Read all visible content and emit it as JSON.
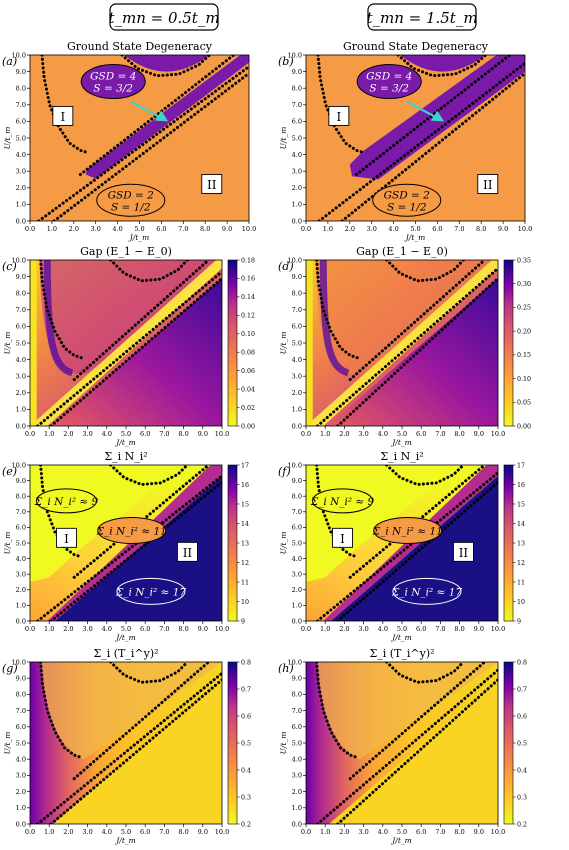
{
  "header": {
    "columns": [
      {
        "label": "t_mn = 0.5t_m"
      },
      {
        "label": "t_mn = 1.5t_m"
      }
    ]
  },
  "chart_data": [
    {
      "type": "heatmap",
      "panel": "(a)",
      "title": "Ground State Degeneracy",
      "xlabel": "J/t_m",
      "ylabel": "U/t_m",
      "xlim": [
        0,
        10
      ],
      "ylim": [
        0,
        10
      ],
      "xticks": [
        "0.0",
        "1.0",
        "2.0",
        "3.0",
        "4.0",
        "5.0",
        "6.0",
        "7.0",
        "8.0",
        "9.0",
        "10.0"
      ],
      "yticks": [
        "0.0",
        "1.0",
        "2.0",
        "3.0",
        "4.0",
        "5.0",
        "6.0",
        "7.0",
        "8.0",
        "9.0",
        "10.0"
      ],
      "annotations": [
        "GSD = 4",
        "S = 3/2",
        "GSD = 2",
        "S = 1/2",
        "I",
        "II"
      ]
    },
    {
      "type": "heatmap",
      "panel": "(b)",
      "title": "Ground State Degeneracy",
      "xlabel": "J/t_m",
      "ylabel": "U/t_m",
      "xlim": [
        0,
        10
      ],
      "ylim": [
        0,
        10
      ],
      "xticks": [
        "0.0",
        "1.0",
        "2.0",
        "3.0",
        "4.0",
        "5.0",
        "6.0",
        "7.0",
        "8.0",
        "9.0",
        "10.0"
      ],
      "yticks": [
        "0.0",
        "1.0",
        "2.0",
        "3.0",
        "4.0",
        "5.0",
        "6.0",
        "7.0",
        "8.0",
        "9.0",
        "10.0"
      ],
      "annotations": [
        "GSD = 4",
        "S = 3/2",
        "GSD = 2",
        "S = 1/2",
        "I",
        "II"
      ]
    },
    {
      "type": "heatmap",
      "panel": "(c)",
      "title": "Gap (E_1 − E_0)",
      "xlabel": "J/t_m",
      "ylabel": "U/t_m",
      "xlim": [
        0,
        10
      ],
      "ylim": [
        0,
        10
      ],
      "xticks": [
        "0.0",
        "1.0",
        "2.0",
        "3.0",
        "4.0",
        "5.0",
        "6.0",
        "7.0",
        "8.0",
        "9.0",
        "10.0"
      ],
      "yticks": [
        "0.0",
        "1.0",
        "2.0",
        "3.0",
        "4.0",
        "5.0",
        "6.0",
        "7.0",
        "8.0",
        "9.0",
        "10.0"
      ],
      "colorbar": {
        "ticks": [
          "0.00",
          "0.02",
          "0.04",
          "0.06",
          "0.08",
          "0.10",
          "0.12",
          "0.14",
          "0.16",
          "0.18"
        ]
      }
    },
    {
      "type": "heatmap",
      "panel": "(d)",
      "title": "Gap (E_1 − E_0)",
      "xlabel": "J/t_m",
      "ylabel": "U/t_m",
      "xlim": [
        0,
        10
      ],
      "ylim": [
        0,
        10
      ],
      "xticks": [
        "0.0",
        "1.0",
        "2.0",
        "3.0",
        "4.0",
        "5.0",
        "6.0",
        "7.0",
        "8.0",
        "9.0",
        "10.0"
      ],
      "yticks": [
        "0.0",
        "1.0",
        "2.0",
        "3.0",
        "4.0",
        "5.0",
        "6.0",
        "7.0",
        "8.0",
        "9.0",
        "10.0"
      ],
      "colorbar": {
        "ticks": [
          "0.00",
          "0.05",
          "0.10",
          "0.15",
          "0.20",
          "0.25",
          "0.30",
          "0.35"
        ]
      }
    },
    {
      "type": "heatmap",
      "panel": "(e)",
      "title": "Σ_i N_i²",
      "xlabel": "J/t_m",
      "ylabel": "U/t_m",
      "xlim": [
        0,
        10
      ],
      "ylim": [
        0,
        10
      ],
      "xticks": [
        "0.0",
        "1.0",
        "2.0",
        "3.0",
        "4.0",
        "5.0",
        "6.0",
        "7.0",
        "8.0",
        "9.0",
        "10.0"
      ],
      "yticks": [
        "0.0",
        "1.0",
        "2.0",
        "3.0",
        "4.0",
        "5.0",
        "6.0",
        "7.0",
        "8.0",
        "9.0",
        "10.0"
      ],
      "colorbar": {
        "ticks": [
          "9",
          "10",
          "11",
          "12",
          "13",
          "14",
          "15",
          "16",
          "17"
        ]
      },
      "annotations": [
        "Σ_i N_i² ≈ 9",
        "Σ_i N_i² ≈ 11",
        "Σ_i N_i² ≈ 17",
        "I",
        "II"
      ]
    },
    {
      "type": "heatmap",
      "panel": "(f)",
      "title": "Σ_i N_i²",
      "xlabel": "J/t_m",
      "ylabel": "U/t_m",
      "xlim": [
        0,
        10
      ],
      "ylim": [
        0,
        10
      ],
      "xticks": [
        "0.0",
        "1.0",
        "2.0",
        "3.0",
        "4.0",
        "5.0",
        "6.0",
        "7.0",
        "8.0",
        "9.0",
        "10.0"
      ],
      "yticks": [
        "0.0",
        "1.0",
        "2.0",
        "3.0",
        "4.0",
        "5.0",
        "6.0",
        "7.0",
        "8.0",
        "9.0",
        "10.0"
      ],
      "colorbar": {
        "ticks": [
          "9",
          "10",
          "11",
          "12",
          "13",
          "14",
          "15",
          "16",
          "17"
        ]
      },
      "annotations": [
        "Σ_i N_i² ≈ 9",
        "Σ_i N_i² ≈ 11",
        "Σ_i N_i² ≈ 17",
        "I",
        "II"
      ]
    },
    {
      "type": "heatmap",
      "panel": "(g)",
      "title": "Σ_i (T_i^y)²",
      "xlabel": "J/t_m",
      "ylabel": "U/t_m",
      "xlim": [
        0,
        10
      ],
      "ylim": [
        0,
        10
      ],
      "xticks": [
        "0.0",
        "1.0",
        "2.0",
        "3.0",
        "4.0",
        "5.0",
        "6.0",
        "7.0",
        "8.0",
        "9.0",
        "10.0"
      ],
      "yticks": [
        "0.0",
        "1.0",
        "2.0",
        "3.0",
        "4.0",
        "5.0",
        "6.0",
        "7.0",
        "8.0",
        "9.0",
        "10.0"
      ],
      "colorbar": {
        "ticks": [
          "0.2",
          "0.3",
          "0.4",
          "0.5",
          "0.6",
          "0.7",
          "0.8"
        ]
      }
    },
    {
      "type": "heatmap",
      "panel": "(h)",
      "title": "Σ_i (T_i^y)²",
      "xlabel": "J/t_m",
      "ylabel": "U/t_m",
      "xlim": [
        0,
        10
      ],
      "ylim": [
        0,
        10
      ],
      "xticks": [
        "0.0",
        "1.0",
        "2.0",
        "3.0",
        "4.0",
        "5.0",
        "6.0",
        "7.0",
        "8.0",
        "9.0",
        "10.0"
      ],
      "yticks": [
        "0.0",
        "1.0",
        "2.0",
        "3.0",
        "4.0",
        "5.0",
        "6.0",
        "7.0",
        "8.0",
        "9.0",
        "10.0"
      ],
      "colorbar": {
        "ticks": [
          "0.2",
          "0.3",
          "0.4",
          "0.5",
          "0.6",
          "0.7",
          "0.8"
        ]
      }
    }
  ],
  "colors": {
    "orange": "#f59a45",
    "purple": "#7a1aa8",
    "yellow": "#f0f921",
    "navy": "#1b0f86",
    "cyan": "#3fd3c8"
  }
}
